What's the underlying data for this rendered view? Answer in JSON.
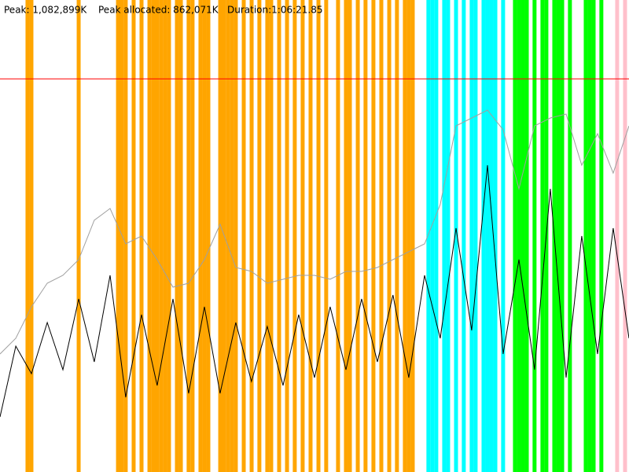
{
  "chart_data": {
    "type": "line",
    "header": [
      "Peak: 1,082,899K",
      "Peak allocated: 862,071K",
      "Duration:1:06:21.85"
    ],
    "xlim": [
      0,
      3982
    ],
    "ylim": [
      0,
      1300000
    ],
    "reference_line": {
      "value": 1082899,
      "color": "#ff0000"
    },
    "events": [
      {
        "color": "#ffa500",
        "x": [
          174,
          199,
          498,
          747,
          771,
          796,
          846,
          896,
          946,
          971,
          995,
          1020,
          1045,
          1070,
          1120,
          1145,
          1194,
          1219,
          1269,
          1294,
          1319,
          1394,
          1418,
          1443,
          1468,
          1493,
          1543,
          1593,
          1642,
          1692,
          1717,
          1767,
          1817,
          1866,
          1916,
          1966,
          2016,
          2065,
          2140,
          2190,
          2215,
          2265,
          2314,
          2364,
          2414,
          2464,
          2513,
          2563,
          2588,
          2613
        ]
      },
      {
        "color": "#00ffff",
        "x": [
          2712,
          2737,
          2762,
          2812,
          2837,
          2887,
          2936,
          2986,
          3011,
          3061,
          3086,
          3111,
          3136,
          3185
        ]
      },
      {
        "color": "#00ff00",
        "x": [
          3260,
          3285,
          3310,
          3335,
          3384,
          3434,
          3459,
          3509,
          3534,
          3559,
          3608,
          3708,
          3733,
          3758,
          3807
        ]
      },
      {
        "color": "#ffc0cb",
        "x": [
          3907,
          3957
        ]
      }
    ],
    "x": [
      0,
      100,
      199,
      299,
      398,
      498,
      597,
      697,
      796,
      896,
      995,
      1095,
      1194,
      1294,
      1393,
      1493,
      1592,
      1692,
      1792,
      1891,
      1991,
      2090,
      2190,
      2289,
      2389,
      2488,
      2588,
      2688,
      2787,
      2887,
      2986,
      3086,
      3185,
      3285,
      3384,
      3484,
      3584,
      3683,
      3783,
      3882,
      3982
    ],
    "series": [
      {
        "color": "#a0a0a0",
        "values": [
          325000,
          368333,
          455000,
          520000,
          541667,
          585000,
          693333,
          725833,
          628333,
          650000,
          585000,
          509167,
          520000,
          585000,
          682500,
          563333,
          552500,
          520000,
          530833,
          541667,
          541667,
          530833,
          552500,
          552500,
          563333,
          585000,
          606667,
          628333,
          736667,
          953333,
          975000,
          996667,
          942500,
          780000,
          953333,
          975000,
          985833,
          845000,
          931667,
          823333,
          953333
        ]
      },
      {
        "color": "#000000",
        "values": [
          151667,
          346667,
          270833,
          411667,
          281667,
          476667,
          303333,
          541667,
          205833,
          433333,
          238333,
          476667,
          216667,
          455000,
          216667,
          411667,
          249167,
          400833,
          238333,
          433333,
          260000,
          455000,
          281667,
          476667,
          303333,
          487500,
          260000,
          541667,
          368333,
          671667,
          390000,
          845000,
          325000,
          585000,
          281667,
          780000,
          260000,
          650000,
          325000,
          671667,
          368333
        ]
      }
    ]
  }
}
